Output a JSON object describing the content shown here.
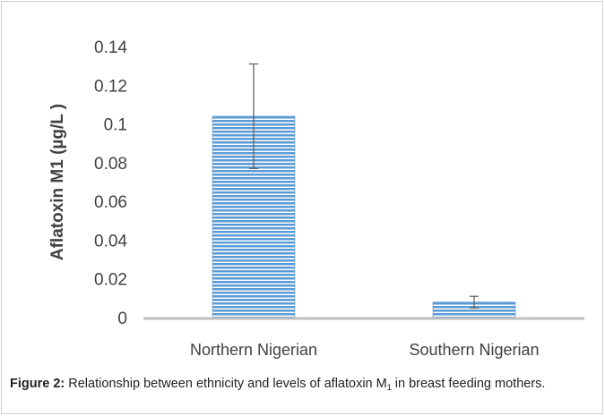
{
  "chart_data": {
    "type": "bar",
    "title": "",
    "xlabel": "",
    "ylabel": "Aflatoxin M1 (µg/L )",
    "ylim": [
      0,
      0.14
    ],
    "yticks": [
      "0",
      "0.02",
      "0.04",
      "0.06",
      "0.08",
      "0.1",
      "0.12",
      "0.14"
    ],
    "yticks_values": [
      0,
      0.02,
      0.04,
      0.06,
      0.08,
      0.1,
      0.12,
      0.14
    ],
    "grid": false,
    "categories": [
      "Northern Nigerian",
      "Southern  Nigerian"
    ],
    "values": [
      0.104,
      0.008
    ],
    "error_upper": [
      0.131,
      0.011
    ],
    "error_lower": [
      0.077,
      0.005
    ],
    "bar_color": "#5b9bd5",
    "bar_stripe_color": "#ffffff"
  },
  "caption": {
    "label": "Figure 2:",
    "text_before": "Relationship between ethnicity and levels of aflatoxin M",
    "subscript": "1",
    "text_after": " in breast feeding mothers."
  }
}
